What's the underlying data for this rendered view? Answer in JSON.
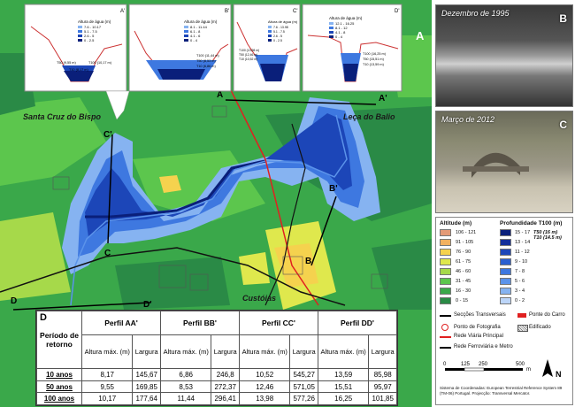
{
  "map": {
    "panel_letter_main": "A",
    "places": {
      "santa_cruz": "Santa Cruz do Bispo",
      "leca": "Leça do Balio",
      "custoias": "Custóias"
    },
    "sections": {
      "a": "A",
      "a_prime": "A'",
      "b": "B",
      "b_prime": "B'",
      "c": "C",
      "c_prime": "C'",
      "d": "D",
      "d_prime": "D'"
    }
  },
  "profiles": {
    "a": {
      "letter": "A'",
      "legend_title": "Altura de água (m)",
      "items": [
        "7.6 - 10.17",
        "5.1 - 7.5",
        "2.6 - 5",
        "0 - 2.5"
      ],
      "notes": [
        "T50 (9,55 m)",
        "T100 (10,17 m)",
        "T10 (8,17 m)"
      ]
    },
    "b": {
      "letter": "B'",
      "legend_title": "Altura de água (m)",
      "items": [
        "8.1 - 11.44",
        "6.1 - 8",
        "4.1 - 6",
        "0 - 4"
      ],
      "notes": [
        "T100 (11,44 m)",
        "T50 (8,53 m)",
        "T10 (6,86 m)"
      ]
    },
    "c": {
      "letter": "C'",
      "legend_title": "Altura de água (m)",
      "items": [
        "7.6 - 13.98",
        "5.1 - 7.5",
        "2.6 - 5",
        "0 - 2.5"
      ],
      "notes": [
        "T100 (13,98 m)",
        "T50 (12,46 m)",
        "T10 (10,52 m)"
      ]
    },
    "d": {
      "letter": "D'",
      "legend_title": "Altura de água (m)",
      "items": [
        "12.1 - 16.25",
        "8.1 - 12",
        "4.1 - 8",
        "0 - 4"
      ],
      "notes": [
        "T100 (16,25 m)",
        "T50 (15,51 m)",
        "T10 (13,59 m)"
      ]
    }
  },
  "photos": {
    "b": {
      "caption": "Dezembro de 1995",
      "letter": "B"
    },
    "c": {
      "caption": "Março de 2012",
      "letter": "C"
    }
  },
  "legend": {
    "altitude_title": "Altitude (m)",
    "depth_title": "Profundidade T100 (m)",
    "altitude_classes": [
      {
        "label": "106 - 121",
        "color": "#e49a76"
      },
      {
        "label": "91 - 105",
        "color": "#f2b15f"
      },
      {
        "label": "76 - 90",
        "color": "#f5d24e"
      },
      {
        "label": "61 - 75",
        "color": "#dfe84d"
      },
      {
        "label": "46 - 60",
        "color": "#a6d94a"
      },
      {
        "label": "31 - 45",
        "color": "#5cc64d"
      },
      {
        "label": "16 - 30",
        "color": "#3aa84a"
      },
      {
        "label": "0 - 15",
        "color": "#2a8a46"
      }
    ],
    "depth_classes": [
      {
        "label": "15 - 17",
        "color": "#0a1f7a"
      },
      {
        "label": "13 - 14",
        "color": "#132f9a"
      },
      {
        "label": "11 - 12",
        "color": "#1c46b8"
      },
      {
        "label": "9 - 10",
        "color": "#2a5fd0"
      },
      {
        "label": "7 - 8",
        "color": "#3e78e0"
      },
      {
        "label": "5 - 6",
        "color": "#5b93ea"
      },
      {
        "label": "3 - 4",
        "color": "#86b3f1"
      },
      {
        "label": "0 - 2",
        "color": "#bcd5f8"
      }
    ],
    "t50": "T50 (16 m)",
    "t10": "T10 (14.5 m)",
    "symbols": {
      "sections": "Secções Transversais",
      "bridge": "Ponte do Carro",
      "photo_point": "Ponto de Fotografia",
      "road": "Rede Viária Principal",
      "built": "Edificado",
      "rail": "Rede Ferroviária e Metro"
    },
    "scale": {
      "labels": [
        "0",
        "125",
        "250",
        "500"
      ],
      "unit": "m"
    },
    "north": "N",
    "reference_text": "Sistema de Coordenadas: European Terrestrial Reference System 89 (TM-06) Portugal. Projecção: Transversal Mercator."
  },
  "table": {
    "letter": "D",
    "period_header": "Período de retorno",
    "profiles": [
      "Perfil AA'",
      "Perfil BB'",
      "Perfil CC'",
      "Perfil DD'"
    ],
    "height_label": "Altura máx. (m)",
    "width_label": "Largura",
    "rows": [
      {
        "period": "10 anos",
        "values": [
          "8,17",
          "145,67",
          "6,86",
          "246,8",
          "10,52",
          "545,27",
          "13,59",
          "85,98"
        ]
      },
      {
        "period": "50 anos",
        "values": [
          "9,55",
          "169,85",
          "8,53",
          "272,37",
          "12,46",
          "571,05",
          "15,51",
          "95,97"
        ]
      },
      {
        "period": "100 anos",
        "values": [
          "10,17",
          "177,64",
          "11,44",
          "296,41",
          "13,98",
          "577,26",
          "16,25",
          "101,85"
        ]
      }
    ]
  }
}
